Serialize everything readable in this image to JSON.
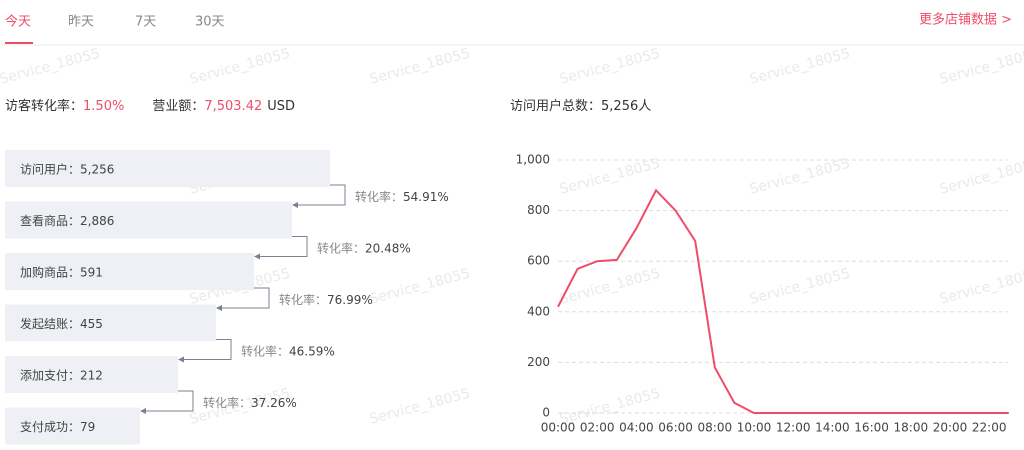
{
  "tabs": [
    "今天",
    "昨天",
    "7天",
    "30天"
  ],
  "more_link": "更多店铺数据 >",
  "watermark": "Service_18055",
  "summary": {
    "conversion_label": "访客转化率：",
    "conversion_value": "1.50%",
    "revenue_label": "营业额：",
    "revenue_value": "7,503.42",
    "revenue_unit": "USD",
    "visitors_label": "访问用户总数：",
    "visitors_value": "5,256人"
  },
  "funnel": {
    "steps": [
      "访问用户：5,256",
      "查看商品：2,886",
      "加购商品：591",
      "发起结账：455",
      "添加支付：212",
      "支付成功：79"
    ],
    "rates": [
      {
        "label": "转化率：",
        "value": "54.91%"
      },
      {
        "label": "转化率：",
        "value": "20.48%"
      },
      {
        "label": "转化率：",
        "value": "76.99%"
      },
      {
        "label": "转化率：",
        "value": "46.59%"
      },
      {
        "label": "转化率：",
        "value": "37.26%"
      }
    ]
  },
  "chart_data": {
    "type": "line",
    "x": [
      "00:00",
      null,
      "02:00",
      null,
      "04:00",
      null,
      "06:00",
      null,
      "08:00",
      null,
      "10:00",
      null,
      "12:00",
      null,
      "14:00",
      null,
      "16:00",
      null,
      "18:00",
      null,
      "20:00",
      null,
      "22:00",
      null
    ],
    "values": [
      420,
      570,
      600,
      605,
      730,
      880,
      800,
      680,
      180,
      40,
      0,
      0,
      0,
      0,
      0,
      0,
      0,
      0,
      0,
      0,
      0,
      0,
      0,
      0
    ],
    "color": "#ee4d6a",
    "ylim": [
      0,
      1000
    ],
    "yticks": [
      0,
      200,
      400,
      600,
      800,
      {
        "value": 1000,
        "label": "1,000"
      }
    ],
    "grid": true
  }
}
